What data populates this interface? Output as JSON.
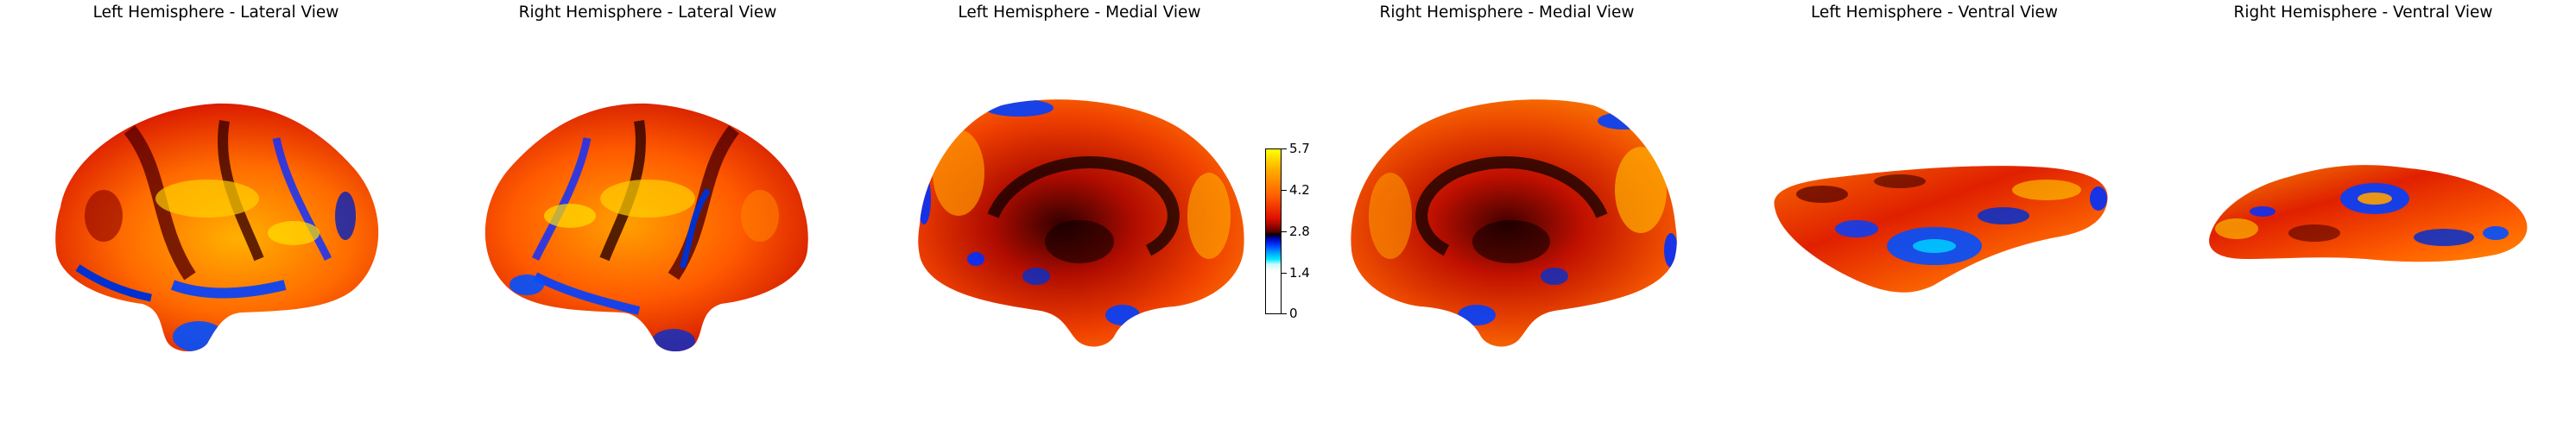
{
  "panels": [
    {
      "title": "Left Hemisphere - Lateral View",
      "view": "lateral",
      "hemisphere": "left"
    },
    {
      "title": "Right Hemisphere - Lateral View",
      "view": "lateral",
      "hemisphere": "right"
    },
    {
      "title": "Left Hemisphere - Medial View",
      "view": "medial",
      "hemisphere": "left"
    },
    {
      "title": "Right Hemisphere - Medial View",
      "view": "medial",
      "hemisphere": "right"
    },
    {
      "title": "Left Hemisphere - Ventral View",
      "view": "ventral",
      "hemisphere": "left"
    },
    {
      "title": "Right Hemisphere - Ventral View",
      "view": "ventral",
      "hemisphere": "right"
    }
  ],
  "colorbar": {
    "ticks": [
      "5.7",
      "4.2",
      "2.8",
      "1.4",
      "0"
    ],
    "min": 0,
    "max": 5.7,
    "colormap": "cold-hot",
    "colors": [
      "#ffff00",
      "#ff6000",
      "#e01000",
      "#000000",
      "#0030ff",
      "#00e8ff",
      "#ffffff"
    ]
  }
}
